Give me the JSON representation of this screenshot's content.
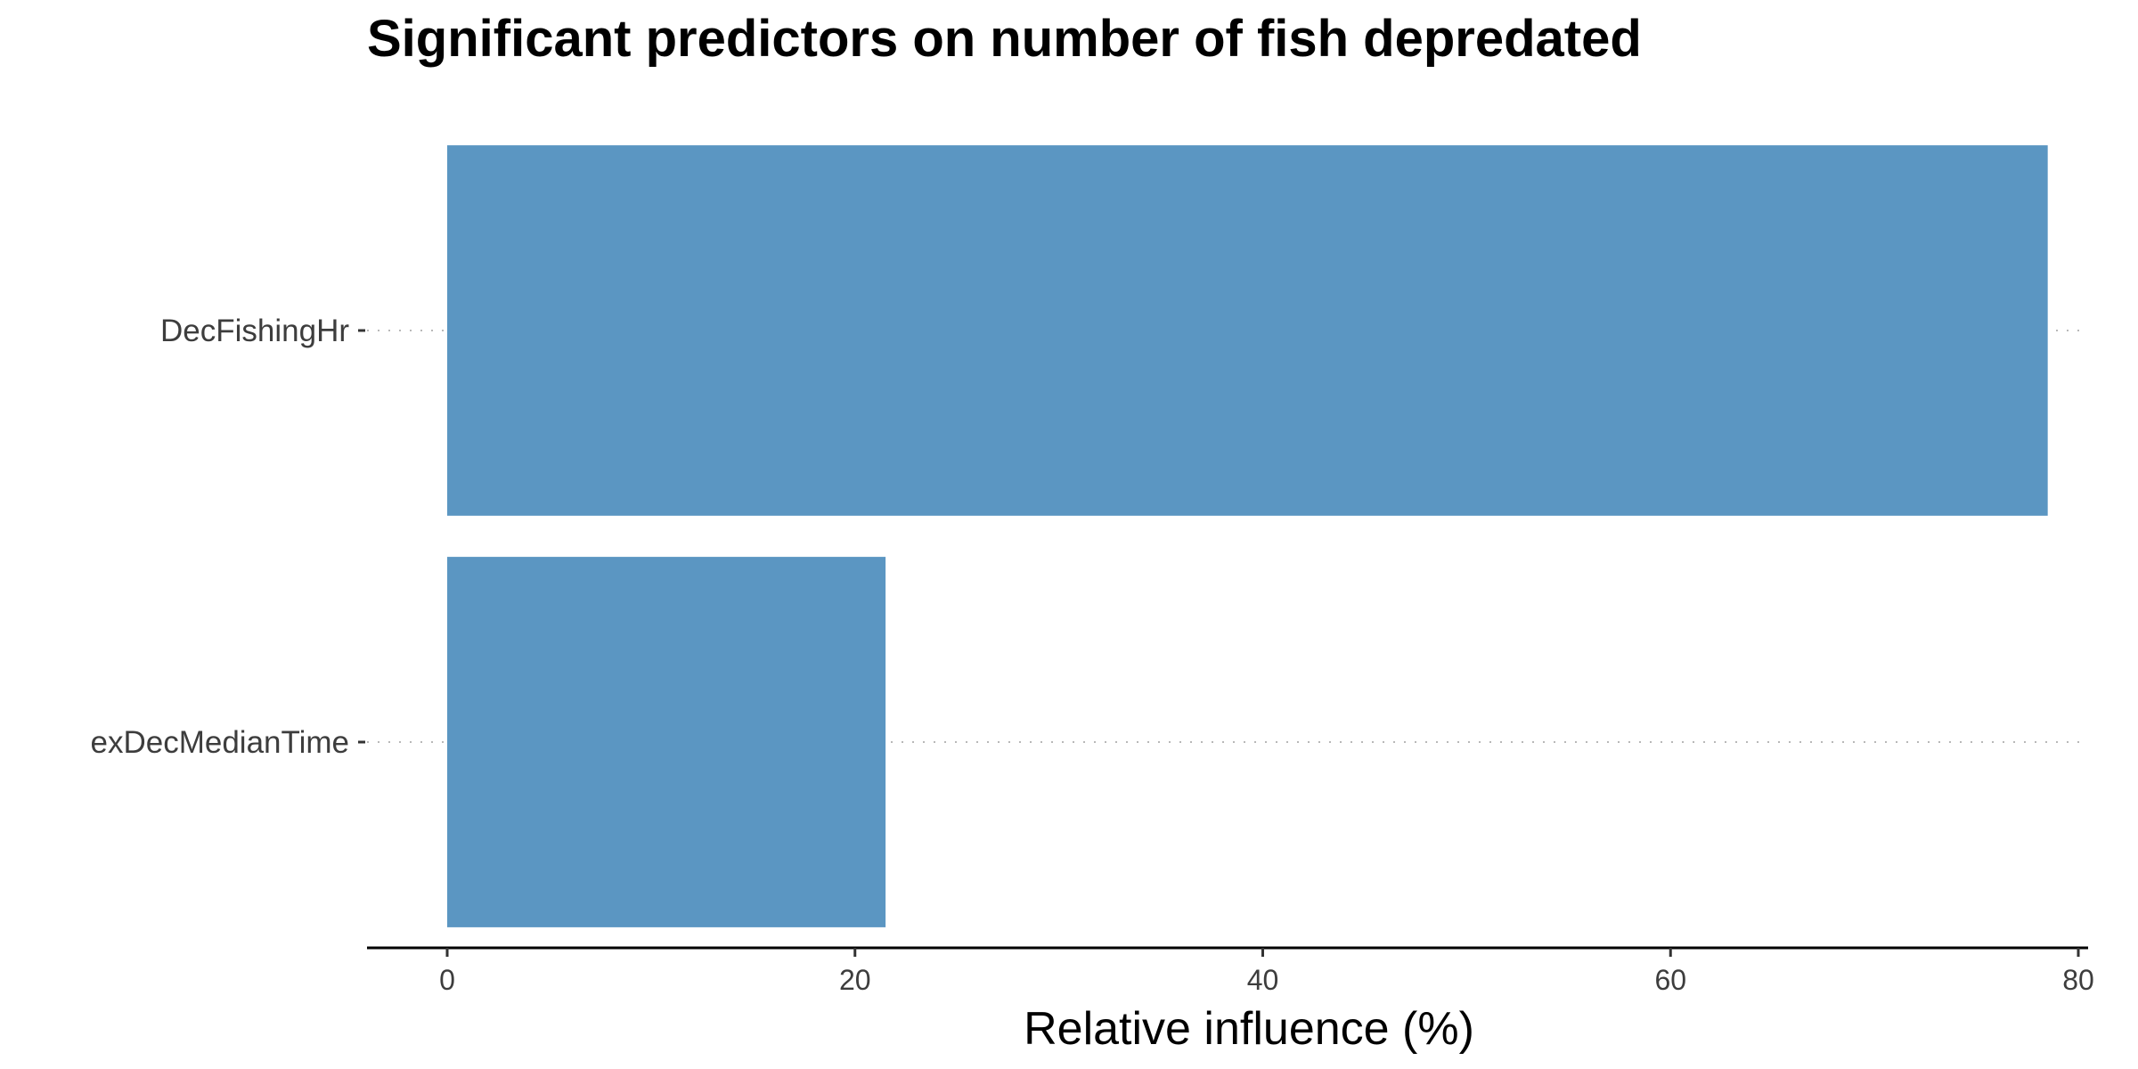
{
  "chart_data": {
    "type": "bar",
    "orientation": "horizontal",
    "title": "Significant predictors on number of fish depredated",
    "xlabel": "Relative influence (%)",
    "ylabel": "",
    "categories": [
      "DecFishingHr",
      "exDecMedianTime"
    ],
    "values": [
      78.5,
      21.5
    ],
    "xlim": [
      0,
      80
    ],
    "xticks": [
      0,
      20,
      40,
      60,
      80
    ],
    "bar_color": "#5b96c2",
    "grid": "horizontal dotted",
    "legend": "none"
  }
}
